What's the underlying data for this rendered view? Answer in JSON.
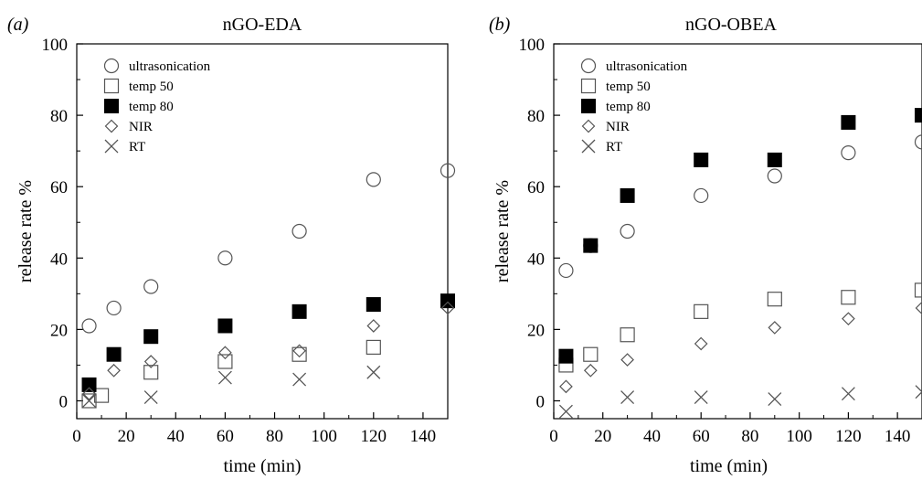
{
  "chart_data": [
    {
      "type": "scatter",
      "panel_tag": "(a)",
      "title": "nGO-EDA",
      "xlabel": "time (min)",
      "ylabel": "release rate %",
      "xlim": [
        0,
        150
      ],
      "ylim": [
        -5,
        100
      ],
      "xticks": [
        0,
        20,
        40,
        60,
        80,
        100,
        120,
        140
      ],
      "yticks": [
        0,
        20,
        40,
        60,
        80,
        100
      ],
      "legend_position": "top-left",
      "series": [
        {
          "name": "ultrasonication",
          "marker": "open-circle",
          "x": [
            5,
            15,
            30,
            60,
            90,
            120,
            150
          ],
          "y": [
            21,
            26,
            32,
            40,
            47.5,
            62,
            64.5
          ]
        },
        {
          "name": "temp 50",
          "marker": "open-square",
          "x": [
            5,
            10,
            30,
            60,
            90,
            120
          ],
          "y": [
            0,
            1.5,
            8,
            11,
            13,
            15
          ]
        },
        {
          "name": "temp 80",
          "marker": "filled-square",
          "x": [
            5,
            15,
            30,
            60,
            90,
            120,
            150
          ],
          "y": [
            4.5,
            13,
            18,
            21,
            25,
            27,
            28
          ]
        },
        {
          "name": "NIR",
          "marker": "diamond",
          "x": [
            5,
            15,
            30,
            60,
            90,
            120,
            150
          ],
          "y": [
            2,
            8.5,
            11,
            13.5,
            14,
            21,
            26
          ]
        },
        {
          "name": "RT",
          "marker": "cross",
          "x": [
            5,
            30,
            60,
            90,
            120
          ],
          "y": [
            0,
            1,
            6.5,
            6,
            8
          ]
        }
      ]
    },
    {
      "type": "scatter",
      "panel_tag": "(b)",
      "title": "nGO-OBEA",
      "xlabel": "time (min)",
      "ylabel": "release rate %",
      "xlim": [
        0,
        150
      ],
      "ylim": [
        -5,
        100
      ],
      "xticks": [
        0,
        20,
        40,
        60,
        80,
        100,
        120,
        140
      ],
      "yticks": [
        0,
        20,
        40,
        60,
        80,
        100
      ],
      "legend_position": "top-left",
      "series": [
        {
          "name": "ultrasonication",
          "marker": "open-circle",
          "x": [
            5,
            15,
            30,
            60,
            90,
            120,
            150
          ],
          "y": [
            36.5,
            43.5,
            47.5,
            57.5,
            63,
            69.5,
            72.5
          ]
        },
        {
          "name": "temp 50",
          "marker": "open-square",
          "x": [
            5,
            15,
            30,
            60,
            90,
            120,
            150
          ],
          "y": [
            10,
            13,
            18.5,
            25,
            28.5,
            29,
            31
          ]
        },
        {
          "name": "temp 80",
          "marker": "filled-square",
          "x": [
            5,
            15,
            30,
            60,
            90,
            120,
            150
          ],
          "y": [
            12.5,
            43.5,
            57.5,
            67.5,
            67.5,
            78,
            80
          ]
        },
        {
          "name": "NIR",
          "marker": "diamond",
          "x": [
            5,
            15,
            30,
            60,
            90,
            120,
            150
          ],
          "y": [
            4,
            8.5,
            11.5,
            16,
            20.5,
            23,
            26
          ]
        },
        {
          "name": "RT",
          "marker": "cross",
          "x": [
            5,
            30,
            60,
            90,
            120,
            150
          ],
          "y": [
            -3,
            1,
            1,
            0.5,
            2,
            2.5
          ]
        }
      ]
    }
  ]
}
